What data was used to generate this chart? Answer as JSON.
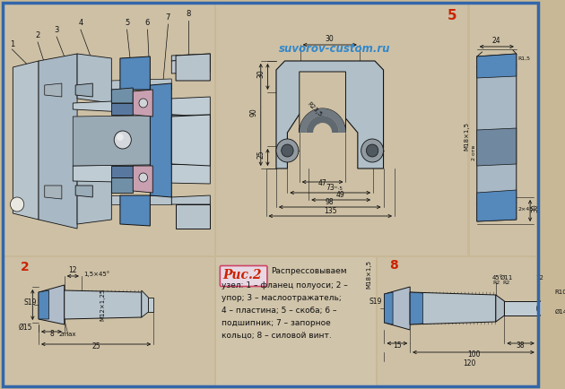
{
  "bg_color": "#c8b896",
  "border_color": "#3366aa",
  "title_watermark": "suvorov-custom.ru",
  "watermark_color": "#3388cc",
  "fig_label": "Рис.2",
  "fig_label_color": "#cc2200",
  "description_lines": [
    "узел: 1 – фланец полуоси; 2 –",
    "упор; 3 – маслоотражатель;",
    "4 – пластина; 5 – скоба; 6 –",
    "подшипник; 7 – запорное",
    "кольцо; 8 – силовой винт."
  ],
  "steel_gray": "#b0bcc8",
  "steel_mid": "#9aaab8",
  "steel_dark": "#6a7a88",
  "blue_cyan": "#5588bb",
  "blue_light": "#88bbdd",
  "pink_mauve": "#c8a0b0",
  "thread_color": "#555555"
}
